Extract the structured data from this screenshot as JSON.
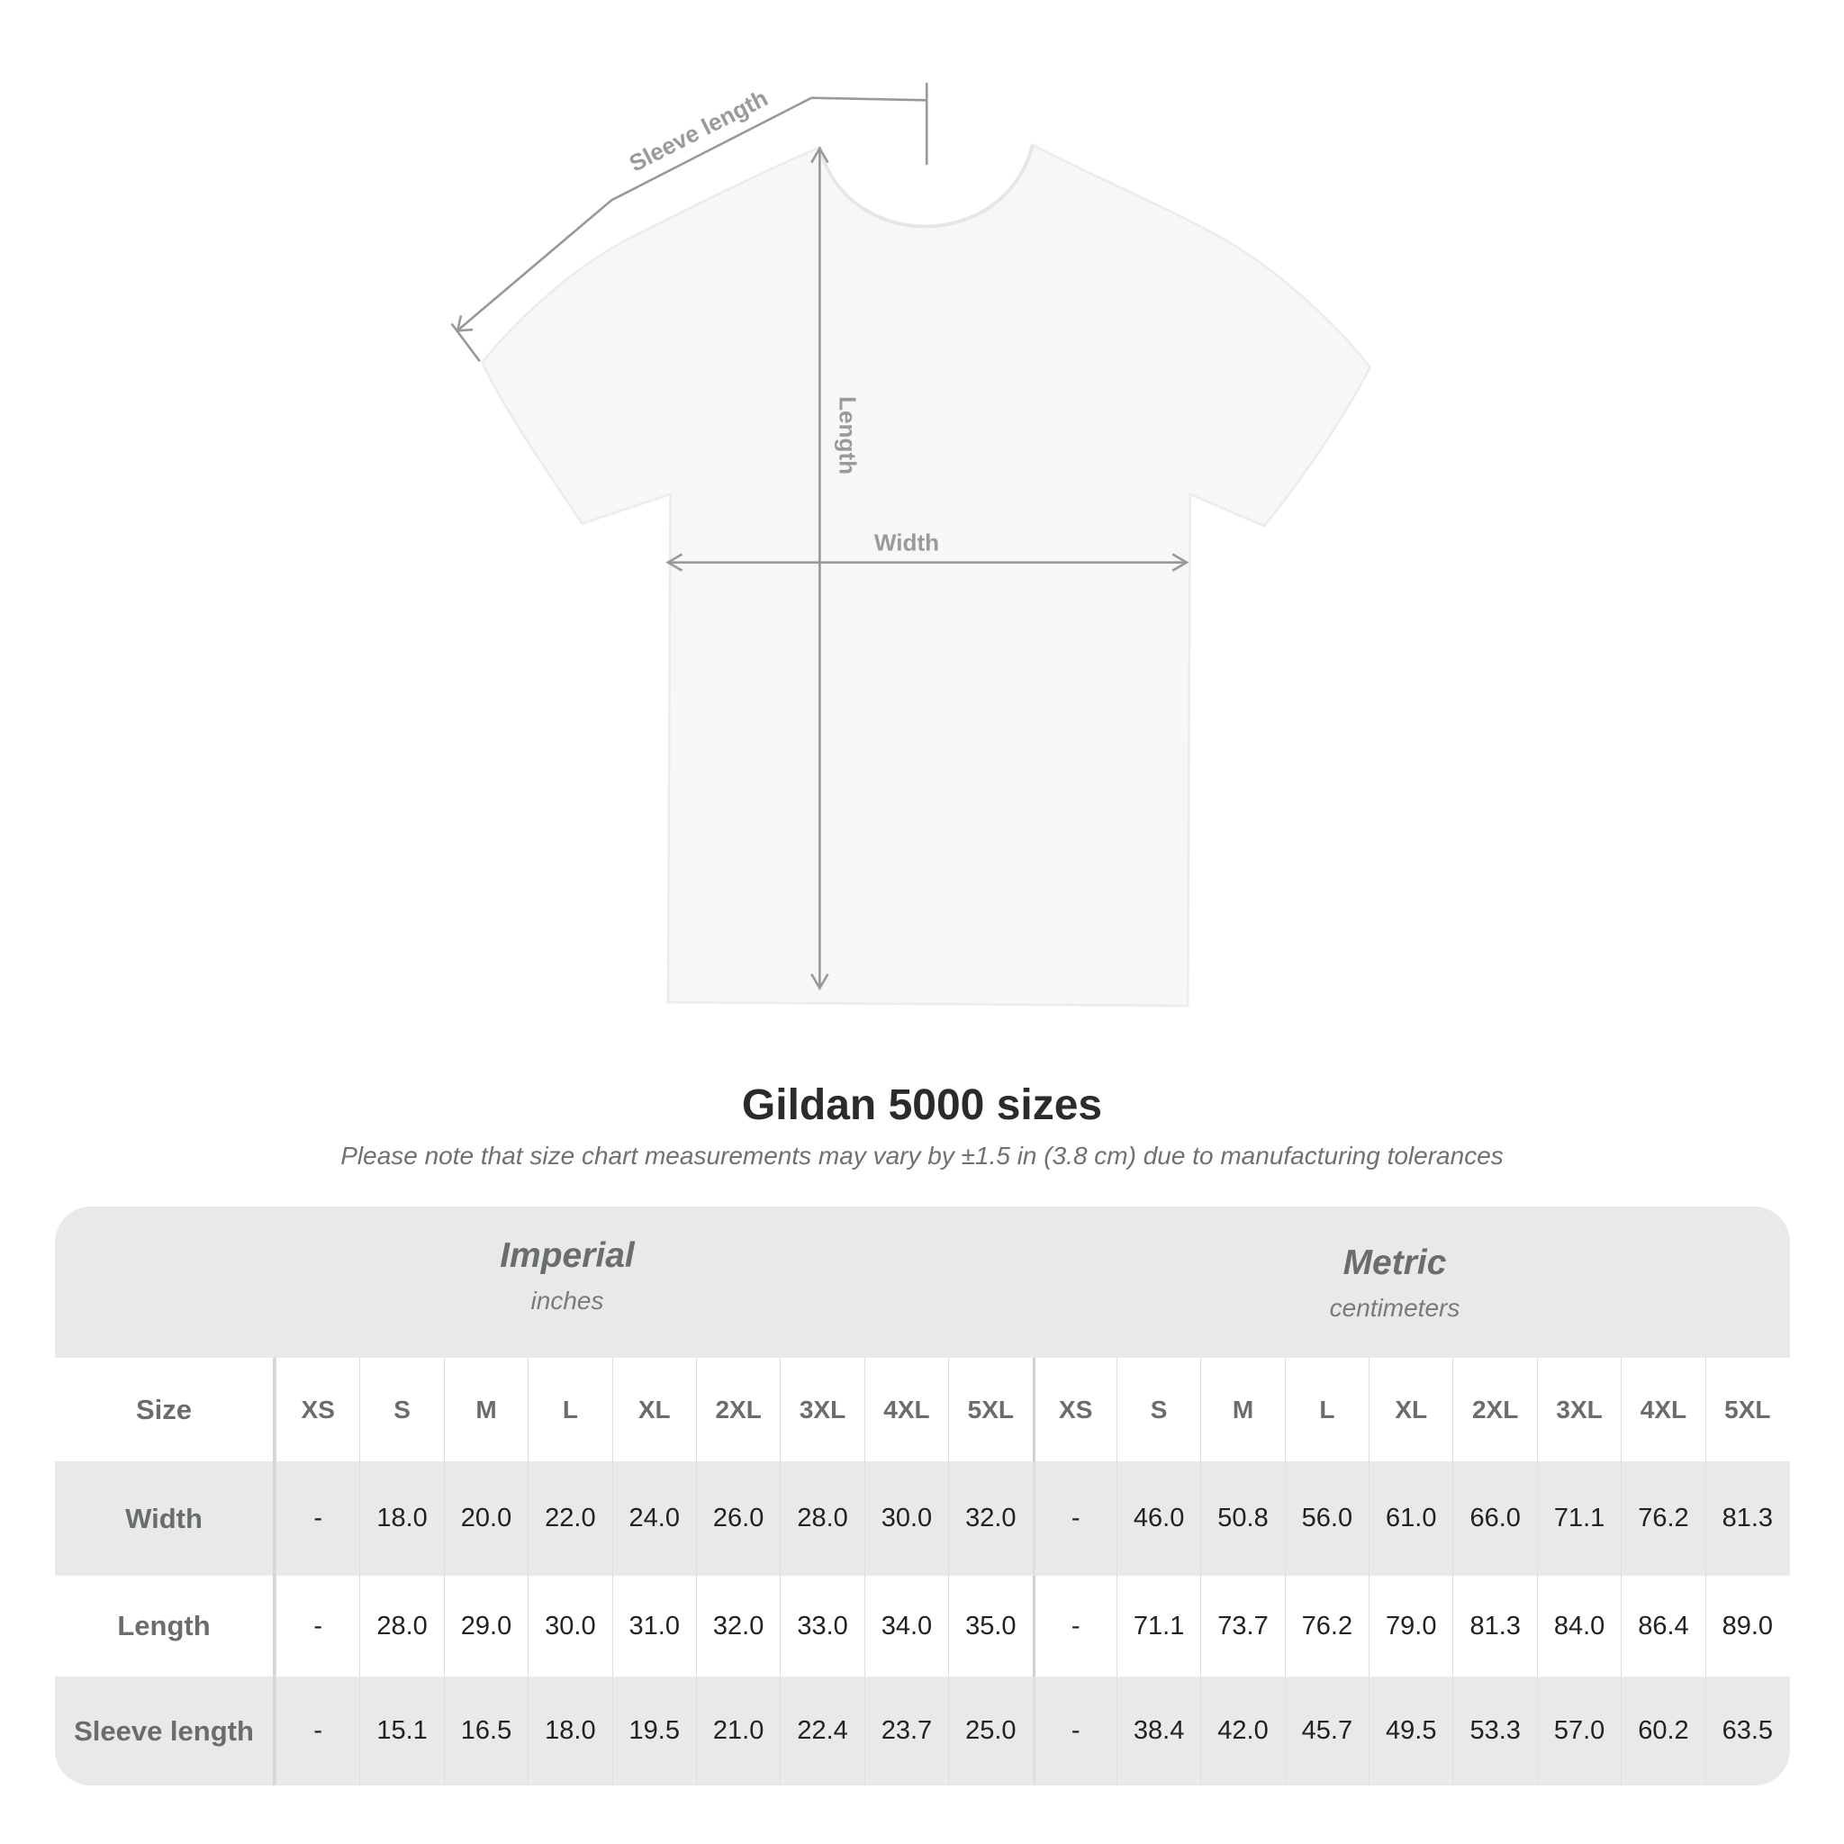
{
  "diagram": {
    "labels": {
      "sleeve": "Sleeve length",
      "length": "Length",
      "width": "Width"
    },
    "shirt_color": "#f7f7f7"
  },
  "title": "Gildan 5000 sizes",
  "note": "Please note that size chart measurements may vary by ±1.5 in (3.8 cm) due to manufacturing tolerances",
  "table": {
    "imperial": {
      "name": "Imperial",
      "unit": "inches"
    },
    "metric": {
      "name": "Metric",
      "unit": "centimeters"
    },
    "size_label": "Size",
    "sizes": [
      "XS",
      "S",
      "M",
      "L",
      "XL",
      "2XL",
      "3XL",
      "4XL",
      "5XL"
    ],
    "rows": [
      {
        "label": "Width",
        "imperial": [
          "-",
          "18.0",
          "20.0",
          "22.0",
          "24.0",
          "26.0",
          "28.0",
          "30.0",
          "32.0"
        ],
        "metric": [
          "-",
          "46.0",
          "50.8",
          "56.0",
          "61.0",
          "66.0",
          "71.1",
          "76.2",
          "81.3"
        ]
      },
      {
        "label": "Length",
        "imperial": [
          "-",
          "28.0",
          "29.0",
          "30.0",
          "31.0",
          "32.0",
          "33.0",
          "34.0",
          "35.0"
        ],
        "metric": [
          "-",
          "71.1",
          "73.7",
          "76.2",
          "79.0",
          "81.3",
          "84.0",
          "86.4",
          "89.0"
        ]
      },
      {
        "label": "Sleeve length",
        "imperial": [
          "-",
          "15.1",
          "16.5",
          "18.0",
          "19.5",
          "21.0",
          "22.4",
          "23.7",
          "25.0"
        ],
        "metric": [
          "-",
          "38.4",
          "42.0",
          "45.7",
          "49.5",
          "53.3",
          "57.0",
          "60.2",
          "63.5"
        ]
      }
    ]
  }
}
